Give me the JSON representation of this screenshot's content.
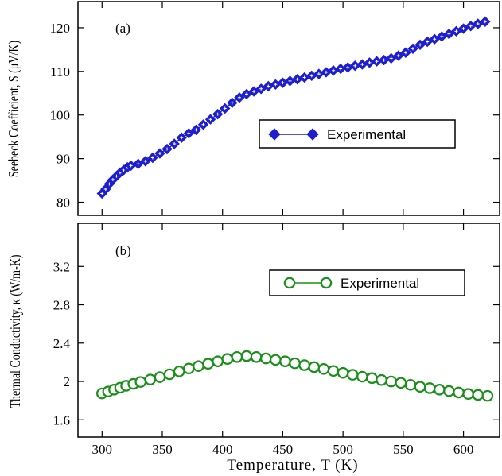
{
  "colors": {
    "seebeck": "#1f1fd0",
    "thermal": "#1a8f1a",
    "axis": "#000000",
    "background": "#ffffff"
  },
  "chart_data": [
    {
      "type": "line",
      "panel_label": "(a)",
      "ylabel": "Seebeck Coefficient, S  (μV/K)",
      "xlim": [
        280,
        630
      ],
      "ylim": [
        77,
        126
      ],
      "yticks": [
        80,
        90,
        100,
        110,
        120
      ],
      "legend": "right",
      "series": [
        {
          "name": "Experimental",
          "marker": "diamond",
          "x": [
            300,
            303,
            306,
            309,
            312,
            315,
            318,
            321,
            324,
            330,
            336,
            342,
            348,
            354,
            360,
            366,
            372,
            378,
            384,
            390,
            396,
            402,
            408,
            414,
            420,
            426,
            432,
            438,
            444,
            450,
            456,
            462,
            468,
            474,
            480,
            486,
            492,
            498,
            504,
            510,
            516,
            522,
            528,
            534,
            540,
            546,
            552,
            558,
            564,
            570,
            576,
            582,
            588,
            594,
            600,
            606,
            612,
            618
          ],
          "y": [
            82,
            83,
            84.2,
            85.2,
            86,
            86.8,
            87.4,
            88,
            88.4,
            88.8,
            89.4,
            90.2,
            91.2,
            92.2,
            93.4,
            94.8,
            95.8,
            96.6,
            97.8,
            99,
            100.2,
            101.5,
            102.8,
            104,
            104.8,
            105.4,
            106,
            106.6,
            107,
            107.4,
            107.8,
            108.2,
            108.6,
            109,
            109.4,
            109.8,
            110.2,
            110.6,
            110.9,
            111.3,
            111.6,
            112,
            112.3,
            112.6,
            113,
            113.6,
            114.3,
            115.2,
            116.1,
            116.8,
            117.4,
            118,
            118.6,
            119.2,
            119.8,
            120.4,
            120.9,
            121.4
          ]
        }
      ]
    },
    {
      "type": "line",
      "panel_label": "(b)",
      "ylabel": "Thermal Conductivity, κ (W/m-K)",
      "xlabel": "Temperature,  T  (K)",
      "xlim": [
        280,
        630
      ],
      "ylim": [
        1.42,
        3.65
      ],
      "xticks": [
        300,
        350,
        400,
        450,
        500,
        550,
        600
      ],
      "yticks": [
        1.6,
        2,
        2.4,
        2.8,
        3.2
      ],
      "ytick_labels": [
        "1.6",
        "2",
        "2.4",
        "2.8",
        "3.2"
      ],
      "legend": "right",
      "series": [
        {
          "name": "Experimental",
          "marker": "circle",
          "x": [
            300,
            305,
            310,
            315,
            320,
            326,
            332,
            340,
            348,
            356,
            364,
            372,
            380,
            388,
            396,
            404,
            412,
            420,
            428,
            436,
            444,
            452,
            460,
            468,
            476,
            484,
            492,
            500,
            508,
            516,
            524,
            532,
            540,
            548,
            556,
            564,
            572,
            580,
            588,
            596,
            604,
            612,
            620
          ],
          "y": [
            1.875,
            1.895,
            1.915,
            1.935,
            1.955,
            1.975,
            1.995,
            2.02,
            2.045,
            2.075,
            2.105,
            2.135,
            2.16,
            2.185,
            2.21,
            2.235,
            2.255,
            2.265,
            2.255,
            2.24,
            2.225,
            2.21,
            2.19,
            2.17,
            2.15,
            2.13,
            2.11,
            2.09,
            2.07,
            2.05,
            2.035,
            2.015,
            2,
            1.985,
            1.965,
            1.945,
            1.93,
            1.915,
            1.9,
            1.885,
            1.87,
            1.86,
            1.85
          ]
        }
      ]
    }
  ]
}
